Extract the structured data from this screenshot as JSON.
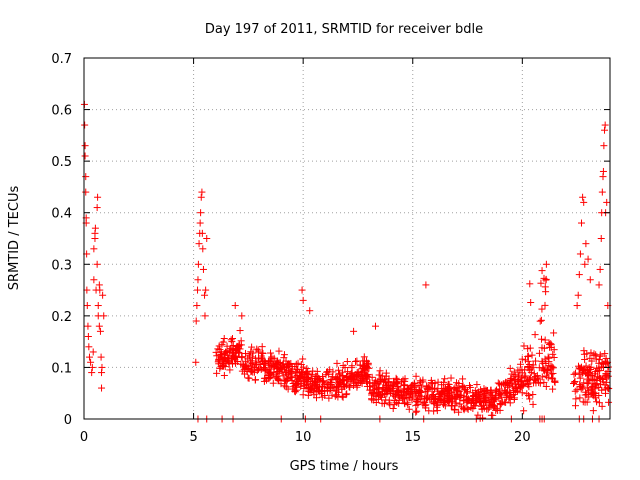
{
  "chart_data": {
    "type": "scatter",
    "title": "Day 197 of 2011, SRMTID for receiver bdle",
    "xlabel": "GPS time / hours",
    "ylabel": "SRMTID / TECUs",
    "xlim": [
      0,
      24
    ],
    "ylim": [
      0,
      0.7
    ],
    "xticks": [
      0,
      5,
      10,
      15,
      20
    ],
    "yticks": [
      0,
      0.1,
      0.2,
      0.3,
      0.4,
      0.5,
      0.6,
      0.7
    ],
    "grid": true,
    "marker": "+",
    "color": "#ff0000",
    "series": [
      {
        "name": "SRMTID",
        "x": [
          0.02,
          0.03,
          0.05,
          0.05,
          0.08,
          0.08,
          0.1,
          0.1,
          0.12,
          0.13,
          0.15,
          0.18,
          0.2,
          0.22,
          0.25,
          0.3,
          0.35,
          0.38,
          0.42,
          0.45,
          0.45,
          0.5,
          0.5,
          0.52,
          0.55,
          0.6,
          0.6,
          0.62,
          0.65,
          0.65,
          0.7,
          0.7,
          0.72,
          0.75,
          0.78,
          0.8,
          0.8,
          0.82,
          0.85,
          0.9,
          5.1,
          5.12,
          5.15,
          5.18,
          5.2,
          5.22,
          5.25,
          5.28,
          5.3,
          5.32,
          5.35,
          5.38,
          5.4,
          5.42,
          5.45,
          5.5,
          5.52,
          5.55,
          5.6,
          5.2,
          5.6,
          6.3,
          6.8,
          9.0,
          10.1,
          10.8,
          13.5,
          15.5,
          17.9,
          19.5,
          20.8,
          20.9,
          21.0,
          22.6,
          22.8,
          23.2,
          23.5,
          22.5,
          22.55,
          22.6,
          22.65,
          22.7,
          22.75,
          22.8,
          22.85,
          22.9,
          23.0,
          23.1,
          23.5,
          23.55,
          23.6,
          23.62,
          23.65,
          23.68,
          23.7,
          23.72,
          23.75,
          23.78,
          23.8,
          23.85,
          23.9
        ],
        "y": [
          0.61,
          0.57,
          0.53,
          0.51,
          0.47,
          0.44,
          0.39,
          0.38,
          0.32,
          0.25,
          0.22,
          0.18,
          0.16,
          0.14,
          0.12,
          0.11,
          0.09,
          0.1,
          0.13,
          0.33,
          0.27,
          0.35,
          0.36,
          0.37,
          0.25,
          0.3,
          0.41,
          0.43,
          0.22,
          0.2,
          0.26,
          0.18,
          0.25,
          0.17,
          0.12,
          0.09,
          0.06,
          0.1,
          0.24,
          0.2,
          0.11,
          0.19,
          0.22,
          0.25,
          0.27,
          0.3,
          0.34,
          0.36,
          0.38,
          0.4,
          0.43,
          0.44,
          0.36,
          0.33,
          0.29,
          0.24,
          0.2,
          0.25,
          0.35,
          0.0,
          0.0,
          0.0,
          0.0,
          0.0,
          0.0,
          0.0,
          0.0,
          0.0,
          0.0,
          0.0,
          0.0,
          0.0,
          0.0,
          0.0,
          0.0,
          0.0,
          0.0,
          0.22,
          0.24,
          0.28,
          0.32,
          0.38,
          0.43,
          0.42,
          0.3,
          0.34,
          0.31,
          0.27,
          0.26,
          0.29,
          0.35,
          0.4,
          0.44,
          0.47,
          0.48,
          0.53,
          0.56,
          0.57,
          0.4,
          0.42,
          0.22
        ]
      }
    ]
  }
}
